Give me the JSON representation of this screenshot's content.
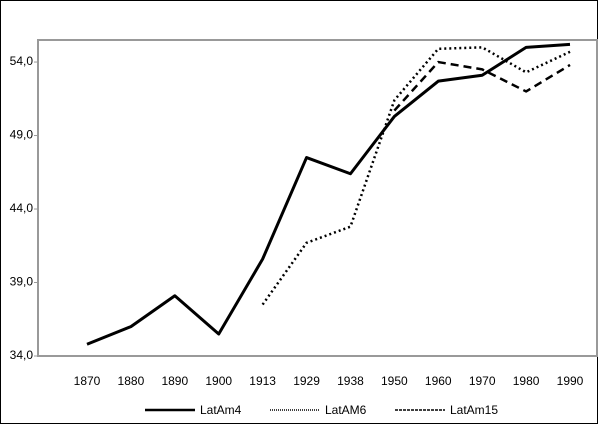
{
  "chart_data": {
    "type": "line",
    "categories": [
      "1870",
      "1880",
      "1890",
      "1900",
      "1913",
      "1929",
      "1938",
      "1950",
      "1960",
      "1970",
      "1980",
      "1990"
    ],
    "series": [
      {
        "name": "LatAm4",
        "color": "#000000",
        "values": [
          34.8,
          36.0,
          38.1,
          35.5,
          40.6,
          47.5,
          46.4,
          50.3,
          52.7,
          53.1,
          55.0,
          55.2
        ]
      },
      {
        "name": "LatAM6",
        "color": "#000000",
        "values": [
          null,
          null,
          null,
          null,
          37.5,
          41.7,
          42.8,
          51.4,
          54.9,
          55.0,
          53.3,
          54.7
        ]
      },
      {
        "name": "LatAm15",
        "color": "#000000",
        "values": [
          null,
          null,
          null,
          null,
          null,
          null,
          null,
          50.7,
          54.0,
          53.5,
          52.0,
          53.8
        ]
      }
    ],
    "ylim": [
      34,
      55.5
    ],
    "yticks": [
      {
        "value": 34,
        "label": "34,0"
      },
      {
        "value": 39,
        "label": "39,0"
      },
      {
        "value": 44,
        "label": "44,0"
      },
      {
        "value": 49,
        "label": "49,0"
      },
      {
        "value": 54,
        "label": "54,0"
      }
    ],
    "grid": false
  }
}
